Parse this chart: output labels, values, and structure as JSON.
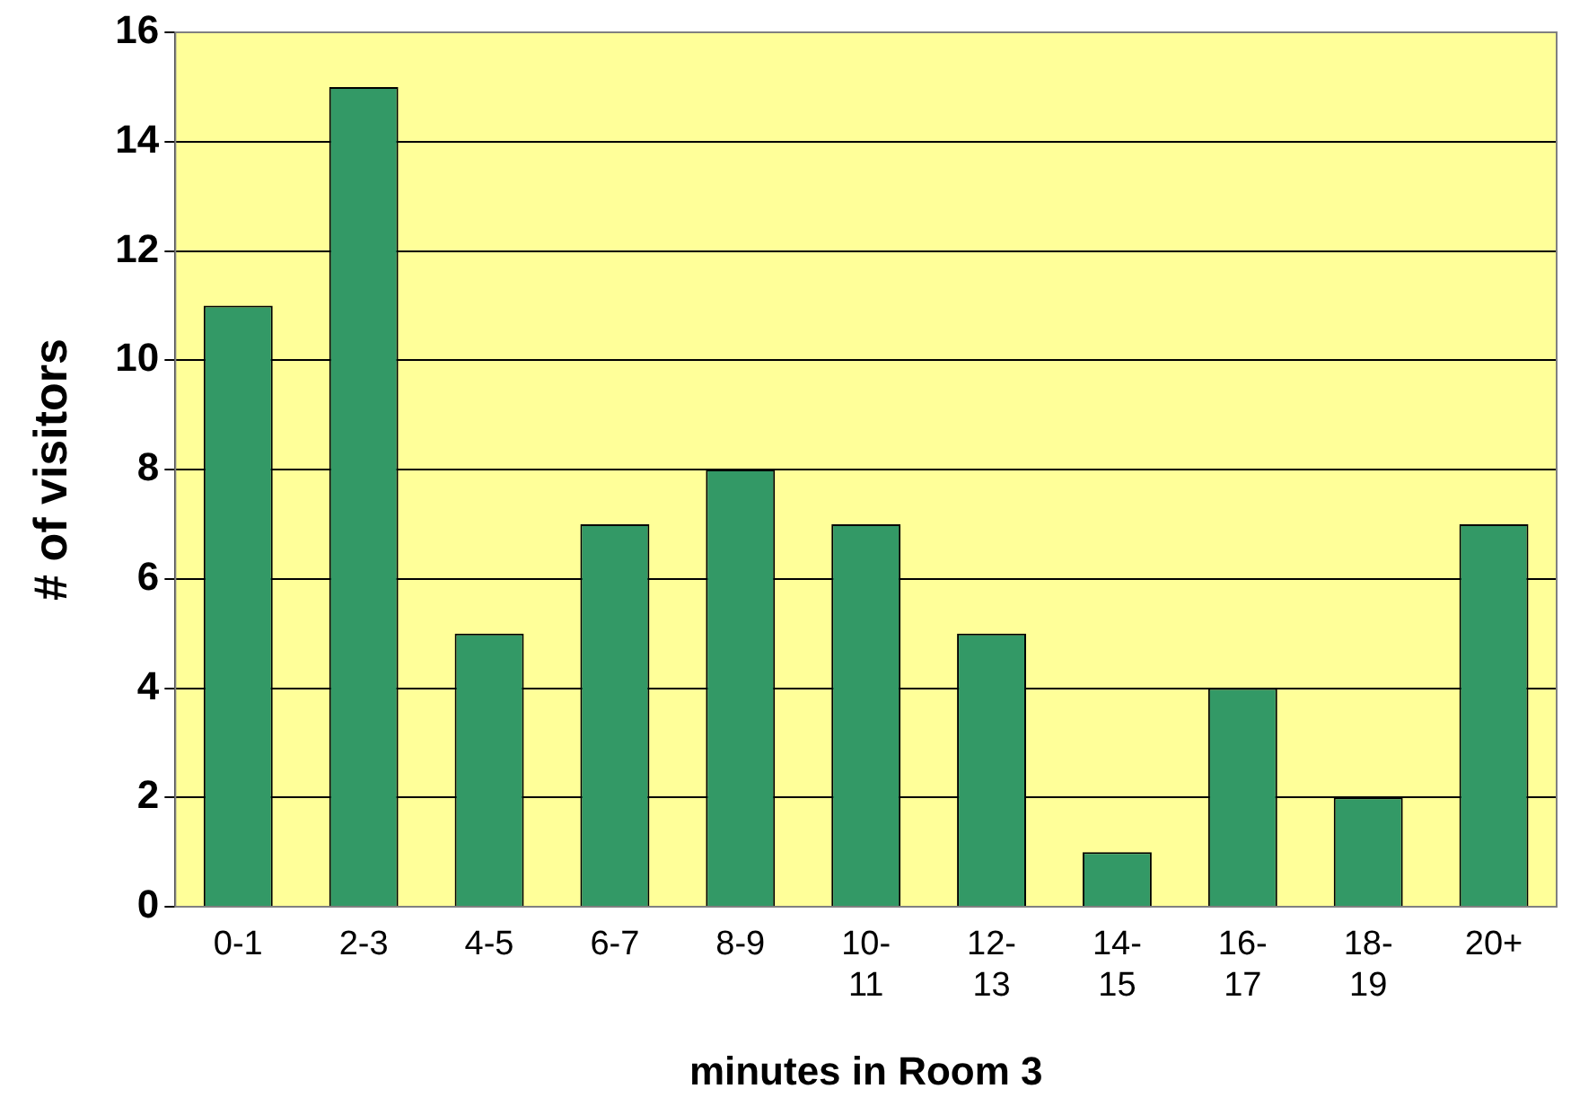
{
  "chart_data": {
    "type": "bar",
    "xlabel": "minutes in Room 3",
    "ylabel": "# of visitors",
    "categories": [
      "0-1",
      "2-3",
      "4-5",
      "6-7",
      "8-9",
      "10-\n11",
      "12-\n13",
      "14-\n15",
      "16-\n17",
      "18-\n19",
      "20+"
    ],
    "values": [
      11,
      15,
      5,
      7,
      8,
      7,
      5,
      1,
      4,
      2,
      7
    ],
    "color": "#339966",
    "ylim": [
      0,
      16
    ],
    "yticks": [
      0,
      2,
      4,
      6,
      8,
      10,
      12,
      14,
      16
    ],
    "grid": "y",
    "legend": false
  }
}
